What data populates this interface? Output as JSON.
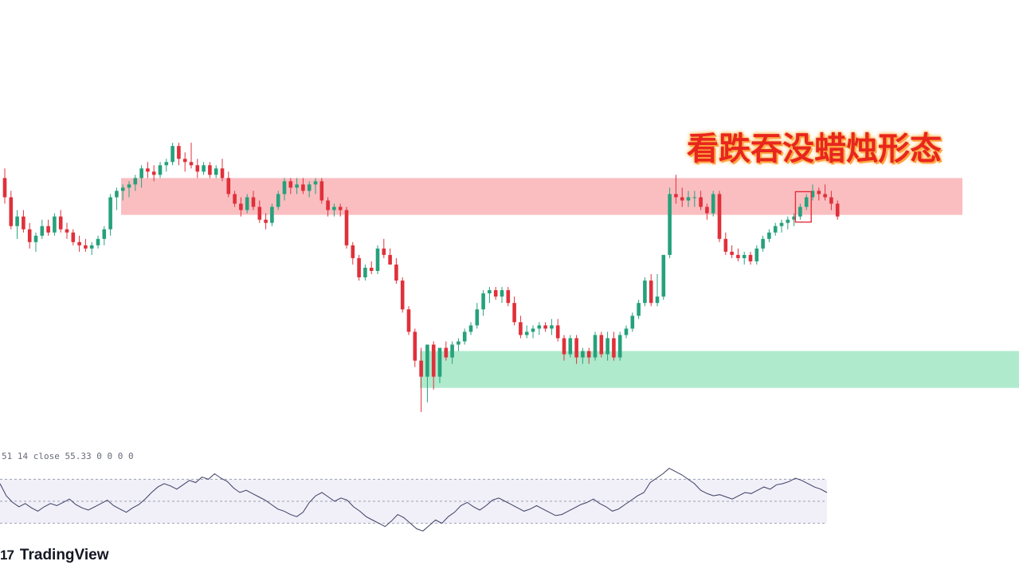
{
  "annotation": {
    "title": "看跌吞没蜡烛形态"
  },
  "rsi_panel": {
    "label": "51 14 close",
    "value": "55.33",
    "extra": "0 0 0 0"
  },
  "brand": {
    "logo": "17",
    "name": "TradingView"
  },
  "colors": {
    "up": "#26a17b",
    "down": "#e0303a",
    "supply_zone": "#f9b7ba",
    "demand_zone": "#a6e8c8",
    "rsi_line": "#3b3f63",
    "rsi_band": "#f1eff8"
  },
  "chart_data": [
    {
      "type": "candlestick",
      "price_range": [
        0,
        100
      ],
      "zones": [
        {
          "name": "supply",
          "low": 68.5,
          "high": 80
        },
        {
          "name": "demand",
          "low": 14.5,
          "high": 26
        }
      ],
      "highlight_candle_index": 129,
      "candles": [
        [
          80,
          83,
          72,
          74
        ],
        [
          74,
          76,
          64,
          65
        ],
        [
          65,
          70,
          61,
          68
        ],
        [
          68,
          70,
          63,
          64
        ],
        [
          64,
          66,
          58,
          60
        ],
        [
          60,
          63,
          57,
          62
        ],
        [
          62,
          67,
          61,
          65
        ],
        [
          65,
          67,
          62,
          63
        ],
        [
          63,
          69,
          62,
          68
        ],
        [
          68,
          70,
          63,
          64
        ],
        [
          64,
          66,
          61,
          63
        ],
        [
          63,
          64,
          59,
          60
        ],
        [
          60,
          62,
          57,
          59
        ],
        [
          59,
          61,
          57,
          58
        ],
        [
          58,
          60,
          56,
          59
        ],
        [
          59,
          62,
          58,
          61
        ],
        [
          61,
          65,
          59,
          64
        ],
        [
          64,
          75,
          62,
          74
        ],
        [
          74,
          77,
          70,
          76
        ],
        [
          76,
          78,
          73,
          77
        ],
        [
          77,
          79,
          74,
          78
        ],
        [
          78,
          81,
          76,
          80
        ],
        [
          80,
          84,
          77,
          83
        ],
        [
          83,
          85,
          80,
          82
        ],
        [
          82,
          84,
          79,
          81
        ],
        [
          81,
          85,
          80,
          84
        ],
        [
          84,
          86,
          82,
          85
        ],
        [
          85,
          91,
          84,
          90
        ],
        [
          90,
          91,
          84,
          86
        ],
        [
          86,
          88,
          82,
          85
        ],
        [
          85,
          91,
          83,
          84
        ],
        [
          84,
          86,
          80,
          82
        ],
        [
          82,
          85,
          81,
          84
        ],
        [
          84,
          85,
          80,
          81
        ],
        [
          81,
          84,
          80,
          83
        ],
        [
          83,
          86,
          79,
          80
        ],
        [
          80,
          82,
          74,
          75
        ],
        [
          75,
          76,
          71,
          72
        ],
        [
          72,
          74,
          68,
          70
        ],
        [
          70,
          75,
          69,
          74
        ],
        [
          74,
          76,
          70,
          71
        ],
        [
          71,
          73,
          66,
          67
        ],
        [
          67,
          69,
          64,
          66
        ],
        [
          66,
          72,
          65,
          71
        ],
        [
          71,
          76,
          70,
          75
        ],
        [
          75,
          80,
          73,
          79
        ],
        [
          79,
          80,
          75,
          77
        ],
        [
          77,
          80,
          75,
          78
        ],
        [
          78,
          80,
          75,
          76
        ],
        [
          76,
          79,
          74,
          78
        ],
        [
          78,
          80,
          75,
          79
        ],
        [
          79,
          80,
          72,
          73
        ],
        [
          73,
          74,
          68,
          70
        ],
        [
          70,
          72,
          68,
          71
        ],
        [
          71,
          72,
          68,
          70
        ],
        [
          70,
          71,
          58,
          59
        ],
        [
          59,
          60,
          53,
          55
        ],
        [
          55,
          56,
          48,
          49
        ],
        [
          49,
          53,
          48,
          52
        ],
        [
          52,
          54,
          50,
          51
        ],
        [
          51,
          59,
          50,
          58
        ],
        [
          58,
          61,
          55,
          56
        ],
        [
          56,
          58,
          53,
          53
        ],
        [
          53,
          55,
          47,
          48
        ],
        [
          48,
          49,
          38,
          39
        ],
        [
          39,
          40,
          31,
          32
        ],
        [
          32,
          33,
          21,
          23
        ],
        [
          23,
          27,
          7,
          18
        ],
        [
          18,
          28,
          10,
          28
        ],
        [
          28,
          29,
          14,
          18
        ],
        [
          18,
          27,
          16,
          27
        ],
        [
          27,
          29,
          23,
          24
        ],
        [
          24,
          29,
          22,
          28
        ],
        [
          28,
          30,
          26,
          29
        ],
        [
          29,
          33,
          28,
          32
        ],
        [
          32,
          35,
          31,
          34
        ],
        [
          34,
          41,
          33,
          39
        ],
        [
          39,
          45,
          37,
          44
        ],
        [
          44,
          46,
          41,
          45
        ],
        [
          45,
          46,
          42,
          43
        ],
        [
          43,
          46,
          41,
          45
        ],
        [
          45,
          46,
          40,
          41
        ],
        [
          41,
          43,
          34,
          35
        ],
        [
          35,
          37,
          30,
          31
        ],
        [
          31,
          34,
          30,
          32
        ],
        [
          32,
          34,
          30,
          33
        ],
        [
          33,
          35,
          31,
          34
        ],
        [
          34,
          35,
          32,
          33
        ],
        [
          33,
          36,
          31,
          34
        ],
        [
          34,
          36,
          29,
          30
        ],
        [
          30,
          31,
          23,
          25
        ],
        [
          25,
          31,
          24,
          30
        ],
        [
          30,
          31,
          22,
          24
        ],
        [
          24,
          27,
          22,
          26
        ],
        [
          26,
          27,
          22,
          24
        ],
        [
          24,
          32,
          23,
          31
        ],
        [
          31,
          32,
          24,
          25
        ],
        [
          25,
          32,
          23,
          30
        ],
        [
          30,
          32,
          23,
          24
        ],
        [
          24,
          32,
          23,
          31
        ],
        [
          31,
          34,
          30,
          33
        ],
        [
          33,
          38,
          32,
          37
        ],
        [
          37,
          42,
          36,
          41
        ],
        [
          41,
          49,
          40,
          48
        ],
        [
          48,
          50,
          40,
          41
        ],
        [
          41,
          50,
          40,
          43
        ],
        [
          43,
          56,
          42,
          56
        ],
        [
          56,
          77,
          55,
          75
        ],
        [
          75,
          81,
          72,
          74
        ],
        [
          74,
          77,
          71,
          73
        ],
        [
          73,
          76,
          71,
          74
        ],
        [
          74,
          76,
          71,
          74
        ],
        [
          74,
          76,
          70,
          71
        ],
        [
          71,
          72,
          67,
          69
        ],
        [
          69,
          76,
          68,
          75
        ],
        [
          75,
          76,
          60,
          61
        ],
        [
          61,
          63,
          56,
          57
        ],
        [
          57,
          59,
          55,
          56
        ],
        [
          56,
          58,
          54,
          55
        ],
        [
          55,
          57,
          53,
          56
        ],
        [
          56,
          57,
          53,
          54
        ],
        [
          54,
          59,
          53,
          58
        ],
        [
          58,
          62,
          57,
          61
        ],
        [
          61,
          64,
          60,
          63
        ],
        [
          63,
          66,
          62,
          65
        ],
        [
          65,
          67,
          63,
          66
        ],
        [
          66,
          68,
          64,
          67
        ],
        [
          67,
          69,
          65,
          68
        ],
        [
          68,
          72,
          67,
          71
        ],
        [
          71,
          75,
          70,
          74
        ],
        [
          74,
          78,
          73,
          76
        ],
        [
          76,
          77,
          73,
          75
        ],
        [
          75,
          78,
          73,
          74
        ],
        [
          74,
          76,
          70,
          72
        ],
        [
          72,
          73,
          67,
          68
        ]
      ]
    },
    {
      "type": "line",
      "name": "RSI",
      "y_range": [
        0,
        100
      ],
      "bands": [
        70,
        50,
        30
      ],
      "values": [
        66,
        55,
        49,
        45,
        48,
        44,
        41,
        45,
        48,
        46,
        49,
        52,
        47,
        44,
        42,
        45,
        48,
        51,
        46,
        43,
        40,
        44,
        47,
        52,
        58,
        63,
        66,
        64,
        61,
        65,
        69,
        67,
        72,
        70,
        75,
        71,
        68,
        62,
        58,
        60,
        57,
        54,
        51,
        47,
        43,
        41,
        38,
        36,
        40,
        49,
        55,
        58,
        54,
        50,
        53,
        51,
        45,
        41,
        36,
        33,
        30,
        27,
        32,
        38,
        35,
        30,
        25,
        23,
        28,
        33,
        30,
        36,
        40,
        46,
        49,
        45,
        42,
        46,
        51,
        53,
        50,
        47,
        44,
        41,
        43,
        46,
        43,
        40,
        37,
        38,
        41,
        44,
        47,
        49,
        52,
        48,
        45,
        41,
        43,
        47,
        51,
        55,
        58,
        67,
        71,
        75,
        80,
        77,
        74,
        70,
        66,
        60,
        57,
        55,
        56,
        54,
        52,
        55,
        58,
        57,
        60,
        63,
        61,
        65,
        66,
        68,
        71,
        69,
        66,
        63,
        61,
        58
      ]
    }
  ]
}
